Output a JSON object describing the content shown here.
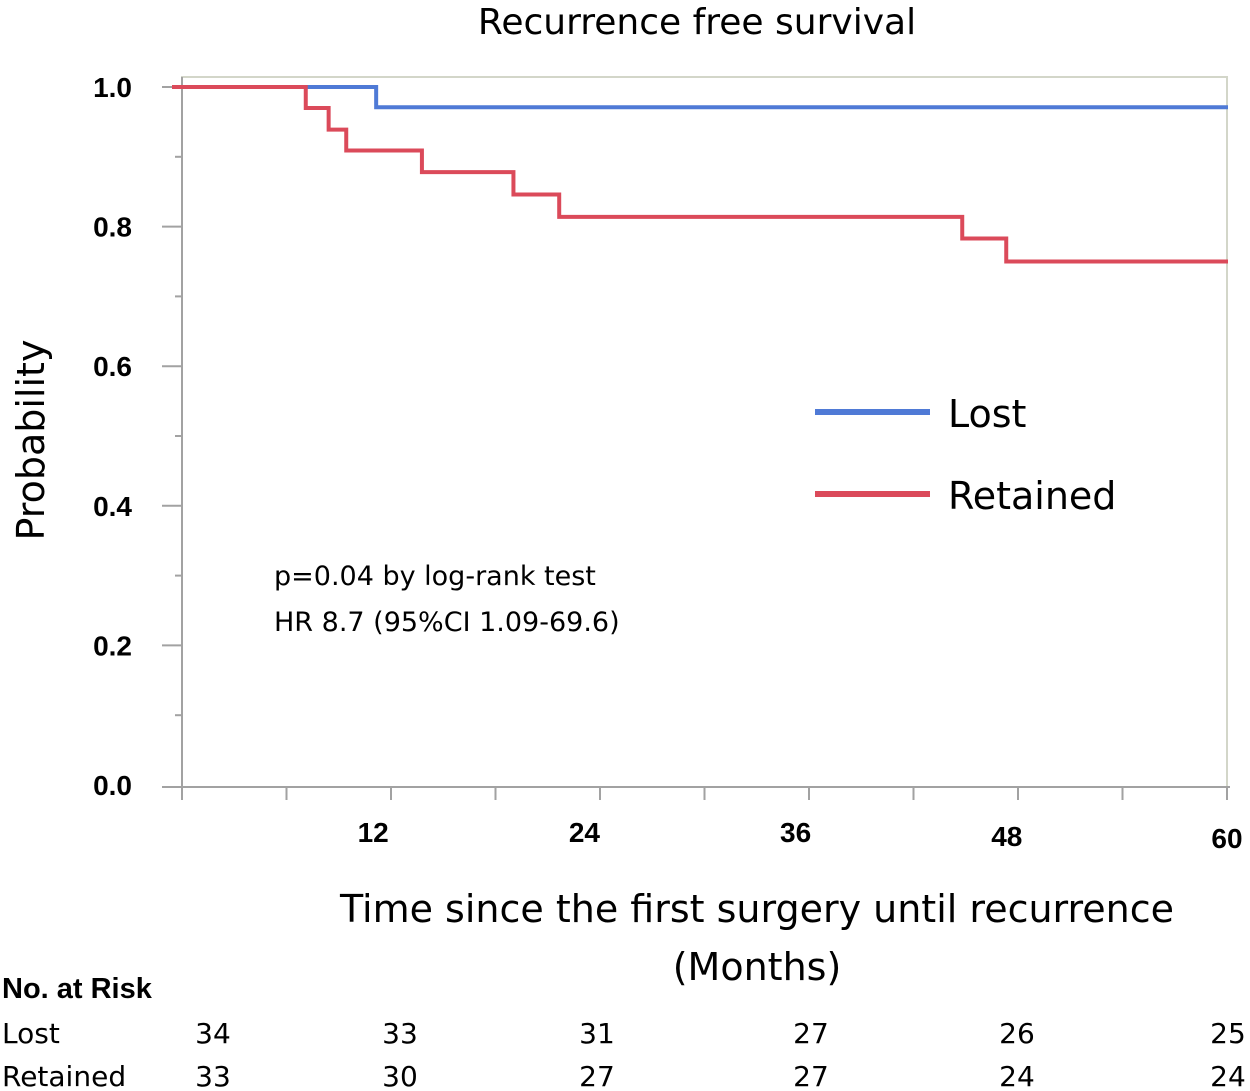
{
  "chart_data": {
    "type": "line",
    "title": "Recurrence free survival",
    "xlabel": "Time since the first surgery until recurrence",
    "xlabel_units": "(Months)",
    "ylabel": "Probability",
    "xlim": [
      0,
      60
    ],
    "ylim": [
      0,
      1
    ],
    "x_ticks": [
      12,
      24,
      36,
      48,
      60
    ],
    "x_tick_labels": [
      "12",
      "24",
      "36",
      "48",
      "60"
    ],
    "y_ticks": [
      0,
      0.2,
      0.4,
      0.6,
      0.8,
      1.0
    ],
    "y_tick_labels": [
      "0.0",
      "0.2",
      "0.4",
      "0.6",
      "0.8",
      "1.0"
    ],
    "grid": false,
    "legend_position": "middle-right",
    "series": [
      {
        "name": "Lost",
        "color": "#4f7ad6",
        "step_x": [
          0,
          11.6,
          60
        ],
        "step_y": [
          1.0,
          0.971,
          0.971
        ]
      },
      {
        "name": "Retained",
        "color": "#db4a5a",
        "step_x": [
          0,
          7.6,
          8.9,
          9.9,
          14.2,
          19.4,
          22.0,
          44.9,
          47.4,
          60
        ],
        "step_y": [
          1.0,
          0.97,
          0.939,
          0.909,
          0.878,
          0.846,
          0.814,
          0.783,
          0.75,
          0.75
        ]
      }
    ],
    "annotations": [
      "p=0.04 by log-rank test",
      "HR 8.7 (95%CI 1.09-69.6)"
    ],
    "risk_table": {
      "header": "No. at Risk",
      "time_points": [
        0,
        12,
        24,
        36,
        48,
        60
      ],
      "rows": [
        {
          "label": "Lost",
          "values": [
            "34",
            "33",
            "31",
            "27",
            "26",
            "25"
          ]
        },
        {
          "label": "Retained",
          "values": [
            "33",
            "30",
            "27",
            "27",
            "24",
            "24"
          ]
        }
      ]
    }
  }
}
